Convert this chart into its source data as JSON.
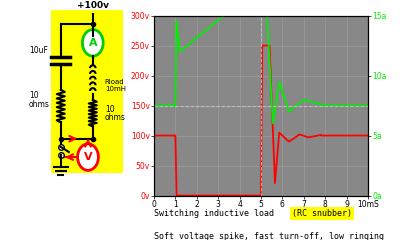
{
  "circuit_bg": "#ffff00",
  "fig_bg": "#ffffff",
  "plot_bg": "#888888",
  "xlim": [
    0,
    10
  ],
  "ylim_left": [
    0,
    300
  ],
  "ylim_right": [
    0,
    15
  ],
  "grid_color": "#aaaaaa",
  "voltage_color": "#ff0000",
  "current_color": "#00ee00",
  "ylabel_left_ticks": [
    0,
    50,
    100,
    150,
    200,
    250,
    300
  ],
  "ylabel_left_labels": [
    "0v",
    "50v",
    "100v",
    "150v",
    "200v",
    "250v",
    "300v"
  ],
  "ylabel_right_ticks": [
    0,
    5,
    10,
    15
  ],
  "ylabel_right_labels": [
    "0a",
    "5a",
    "10a",
    "15a"
  ],
  "xlabel_ticks": [
    0,
    1,
    2,
    3,
    4,
    5,
    6,
    7,
    8,
    9,
    10
  ],
  "title_text": "Switching inductive load ",
  "highlight_text": "(RC snubber)",
  "subtitle_text": "Soft voltage spike, fast turn-off, low ringing",
  "highlight_bg": "#ffff00",
  "text_color": "#000000",
  "dashed_line_color": "#cccccc",
  "current_0a_voltage": 150,
  "current_scale": 20
}
